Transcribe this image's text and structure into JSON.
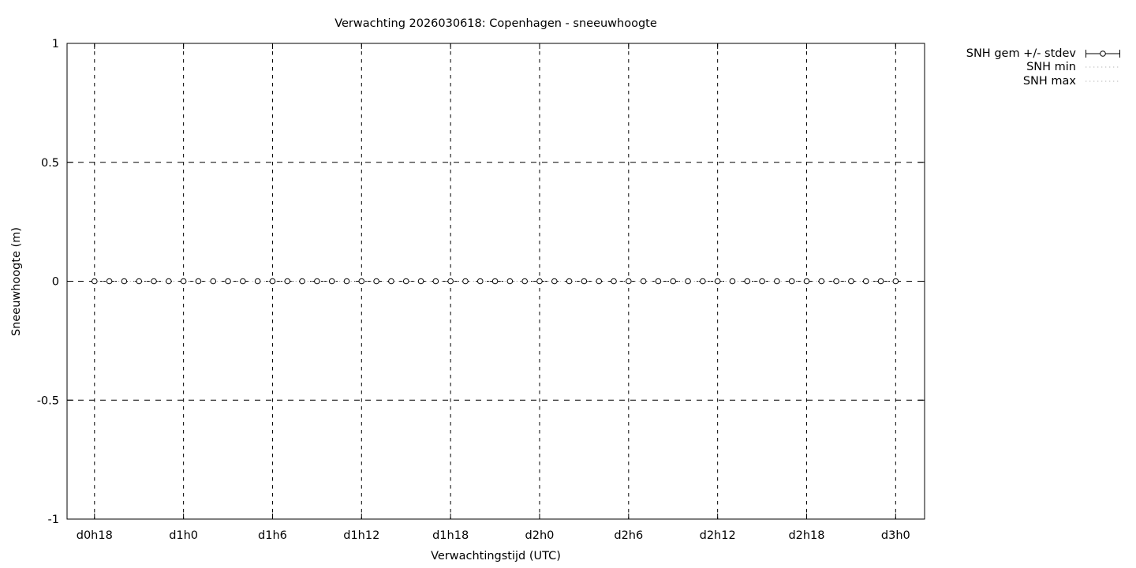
{
  "title": "Verwachting 2026030618: Copenhagen - sneeuwhoogte",
  "chart_data": {
    "type": "line",
    "title": "Verwachting 2026030618: Copenhagen - sneeuwhoogte",
    "xlabel": "Verwachtingstijd (UTC)",
    "ylabel": "Sneeuwhoogte (m)",
    "xlim_hours": [
      16.15,
      73.95
    ],
    "ylim": [
      -1,
      1
    ],
    "yticks": [
      -1,
      -0.5,
      0,
      0.5,
      1
    ],
    "ytick_labels": [
      "-1",
      "-0.5",
      "0",
      "0.5",
      "1"
    ],
    "xticks": [
      {
        "hour": 18,
        "label": "d0h18"
      },
      {
        "hour": 24,
        "label": "d1h0"
      },
      {
        "hour": 30,
        "label": "d1h6"
      },
      {
        "hour": 36,
        "label": "d1h12"
      },
      {
        "hour": 42,
        "label": "d1h18"
      },
      {
        "hour": 48,
        "label": "d2h0"
      },
      {
        "hour": 54,
        "label": "d2h6"
      },
      {
        "hour": 60,
        "label": "d2h12"
      },
      {
        "hour": 66,
        "label": "d2h18"
      },
      {
        "hour": 72,
        "label": "d3h0"
      }
    ],
    "grid": true,
    "legend": {
      "position": "outside-right-top",
      "entries": [
        {
          "label": "SNH gem +/- stdev",
          "style": "errorbar",
          "color": "#000000"
        },
        {
          "label": "SNH min",
          "style": "dotted",
          "color": "#b4b4b4"
        },
        {
          "label": "SNH max",
          "style": "dotted",
          "color": "#b4b4b4"
        }
      ]
    },
    "series": [
      {
        "name": "SNH gem +/- stdev",
        "style": "points-errorbars",
        "hours": [
          18,
          19,
          20,
          21,
          22,
          23,
          24,
          25,
          26,
          27,
          28,
          29,
          30,
          31,
          32,
          33,
          34,
          35,
          36,
          37,
          38,
          39,
          40,
          41,
          42,
          43,
          44,
          45,
          46,
          47,
          48,
          49,
          50,
          51,
          52,
          53,
          54,
          55,
          56,
          57,
          58,
          59,
          60,
          61,
          62,
          63,
          64,
          65,
          66,
          67,
          68,
          69,
          70,
          71,
          72
        ],
        "values": [
          0,
          0,
          0,
          0,
          0,
          0,
          0,
          0,
          0,
          0,
          0,
          0,
          0,
          0,
          0,
          0,
          0,
          0,
          0,
          0,
          0,
          0,
          0,
          0,
          0,
          0,
          0,
          0,
          0,
          0,
          0,
          0,
          0,
          0,
          0,
          0,
          0,
          0,
          0,
          0,
          0,
          0,
          0,
          0,
          0,
          0,
          0,
          0,
          0,
          0,
          0,
          0,
          0,
          0,
          0
        ],
        "stdev_constant": 0
      },
      {
        "name": "SNH min",
        "style": "dotted-line",
        "value_constant": 0
      },
      {
        "name": "SNH max",
        "style": "dotted-line",
        "value_constant": 0
      }
    ],
    "colors": {
      "axis": "#000000",
      "grid": "#000000",
      "points": "#000000",
      "minmax": "#b4b4b4",
      "background": "#ffffff"
    }
  }
}
